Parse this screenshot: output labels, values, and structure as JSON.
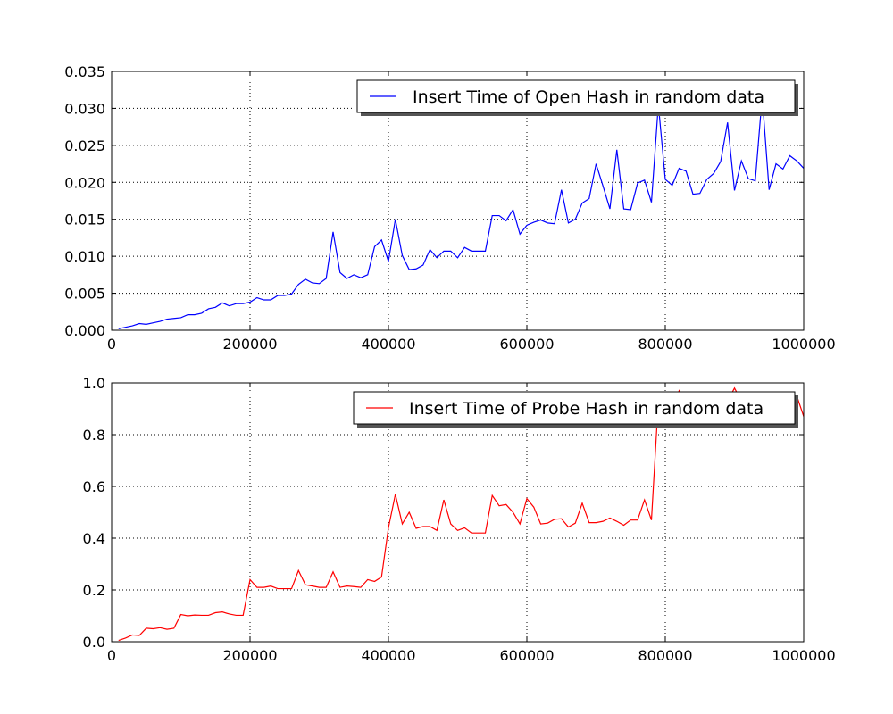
{
  "chart_data": [
    {
      "type": "line",
      "title": "",
      "xlabel": "",
      "ylabel": "",
      "xlim": [
        0,
        1000000
      ],
      "ylim": [
        0,
        0.035
      ],
      "xticks": [
        0,
        200000,
        400000,
        600000,
        800000,
        1000000
      ],
      "xtick_labels": [
        "0",
        "200000",
        "400000",
        "600000",
        "800000",
        "1000000"
      ],
      "yticks": [
        0,
        0.005,
        0.01,
        0.015,
        0.02,
        0.025,
        0.03,
        0.035
      ],
      "ytick_labels": [
        "0.000",
        "0.005",
        "0.010",
        "0.015",
        "0.020",
        "0.025",
        "0.030",
        "0.035"
      ],
      "grid": true,
      "legend_position": "top-right",
      "series": [
        {
          "name": "Insert Time of Open Hash in random data",
          "color": "#0000ff",
          "x": [
            10000,
            20000,
            30000,
            40000,
            50000,
            60000,
            70000,
            80000,
            90000,
            100000,
            110000,
            120000,
            130000,
            140000,
            150000,
            160000,
            170000,
            180000,
            190000,
            200000,
            210000,
            220000,
            230000,
            240000,
            250000,
            260000,
            270000,
            280000,
            290000,
            300000,
            310000,
            320000,
            330000,
            340000,
            350000,
            360000,
            370000,
            380000,
            390000,
            400000,
            410000,
            420000,
            430000,
            440000,
            450000,
            460000,
            470000,
            480000,
            490000,
            500000,
            510000,
            520000,
            530000,
            540000,
            550000,
            560000,
            570000,
            580000,
            590000,
            600000,
            610000,
            620000,
            630000,
            640000,
            650000,
            660000,
            670000,
            680000,
            690000,
            700000,
            710000,
            720000,
            730000,
            740000,
            750000,
            760000,
            770000,
            780000,
            790000,
            800000,
            810000,
            820000,
            830000,
            840000,
            850000,
            860000,
            870000,
            880000,
            890000,
            900000,
            910000,
            920000,
            930000,
            940000,
            950000,
            960000,
            970000,
            980000,
            990000,
            1000000
          ],
          "y": [
            0.0002,
            0.0004,
            0.0006,
            0.0009,
            0.0008,
            0.001,
            0.0012,
            0.0015,
            0.0016,
            0.0017,
            0.0021,
            0.0021,
            0.0023,
            0.0029,
            0.0031,
            0.0037,
            0.0033,
            0.0036,
            0.0036,
            0.0038,
            0.0044,
            0.0041,
            0.0041,
            0.0047,
            0.0047,
            0.0049,
            0.0062,
            0.0069,
            0.0064,
            0.0063,
            0.007,
            0.0133,
            0.0078,
            0.007,
            0.0075,
            0.0071,
            0.0075,
            0.0113,
            0.0122,
            0.0093,
            0.015,
            0.0101,
            0.0082,
            0.0083,
            0.0088,
            0.0109,
            0.0098,
            0.0107,
            0.0107,
            0.0098,
            0.0112,
            0.0107,
            0.0107,
            0.0107,
            0.0155,
            0.0155,
            0.0148,
            0.0163,
            0.013,
            0.0142,
            0.0146,
            0.0149,
            0.0145,
            0.0144,
            0.019,
            0.0145,
            0.015,
            0.0172,
            0.0178,
            0.0225,
            0.0195,
            0.0164,
            0.0244,
            0.0164,
            0.0163,
            0.0199,
            0.0203,
            0.0173,
            0.0305,
            0.0204,
            0.0196,
            0.0219,
            0.0215,
            0.0184,
            0.0185,
            0.0204,
            0.0212,
            0.0228,
            0.0281,
            0.0189,
            0.0229,
            0.0205,
            0.0202,
            0.0316,
            0.019,
            0.0225,
            0.0218,
            0.0236,
            0.0229,
            0.0219
          ]
        }
      ]
    },
    {
      "type": "line",
      "title": "",
      "xlabel": "",
      "ylabel": "",
      "xlim": [
        0,
        1000000
      ],
      "ylim": [
        0,
        1.0
      ],
      "xticks": [
        0,
        200000,
        400000,
        600000,
        800000,
        1000000
      ],
      "xtick_labels": [
        "0",
        "200000",
        "400000",
        "600000",
        "800000",
        "1000000"
      ],
      "yticks": [
        0,
        0.2,
        0.4,
        0.6,
        0.8,
        1.0
      ],
      "ytick_labels": [
        "0.0",
        "0.2",
        "0.4",
        "0.6",
        "0.8",
        "1.0"
      ],
      "grid": true,
      "legend_position": "top-right",
      "series": [
        {
          "name": "Insert Time of Probe Hash in random data",
          "color": "#ff0000",
          "x": [
            10000,
            20000,
            30000,
            40000,
            50000,
            60000,
            70000,
            80000,
            90000,
            100000,
            110000,
            120000,
            130000,
            140000,
            150000,
            160000,
            170000,
            180000,
            190000,
            200000,
            210000,
            220000,
            230000,
            240000,
            250000,
            260000,
            270000,
            280000,
            290000,
            300000,
            310000,
            320000,
            330000,
            340000,
            350000,
            360000,
            370000,
            380000,
            390000,
            400000,
            410000,
            420000,
            430000,
            440000,
            450000,
            460000,
            470000,
            480000,
            490000,
            500000,
            510000,
            520000,
            530000,
            540000,
            550000,
            560000,
            570000,
            580000,
            590000,
            600000,
            610000,
            620000,
            630000,
            640000,
            650000,
            660000,
            670000,
            680000,
            690000,
            700000,
            710000,
            720000,
            730000,
            740000,
            750000,
            760000,
            770000,
            780000,
            790000,
            800000,
            810000,
            820000,
            830000,
            840000,
            850000,
            860000,
            870000,
            880000,
            890000,
            900000,
            910000,
            920000,
            930000,
            940000,
            950000,
            960000,
            970000,
            980000,
            990000,
            1000000
          ],
          "y": [
            0.005,
            0.014,
            0.026,
            0.024,
            0.052,
            0.05,
            0.054,
            0.048,
            0.052,
            0.105,
            0.1,
            0.103,
            0.102,
            0.102,
            0.112,
            0.115,
            0.107,
            0.102,
            0.102,
            0.24,
            0.21,
            0.21,
            0.215,
            0.205,
            0.205,
            0.205,
            0.275,
            0.22,
            0.215,
            0.21,
            0.21,
            0.27,
            0.21,
            0.215,
            0.213,
            0.21,
            0.24,
            0.233,
            0.25,
            0.44,
            0.57,
            0.455,
            0.5,
            0.438,
            0.445,
            0.445,
            0.43,
            0.548,
            0.455,
            0.43,
            0.44,
            0.42,
            0.42,
            0.42,
            0.565,
            0.525,
            0.53,
            0.5,
            0.455,
            0.553,
            0.52,
            0.455,
            0.458,
            0.473,
            0.475,
            0.443,
            0.458,
            0.535,
            0.46,
            0.46,
            0.465,
            0.478,
            0.465,
            0.45,
            0.47,
            0.47,
            0.548,
            0.47,
            0.93,
            0.905,
            0.9,
            0.97,
            0.92,
            0.93,
            0.93,
            0.93,
            0.93,
            0.93,
            0.93,
            0.98,
            0.93,
            0.93,
            0.93,
            0.93,
            0.93,
            0.93,
            0.93,
            0.93,
            0.95,
            0.87
          ]
        }
      ]
    }
  ]
}
